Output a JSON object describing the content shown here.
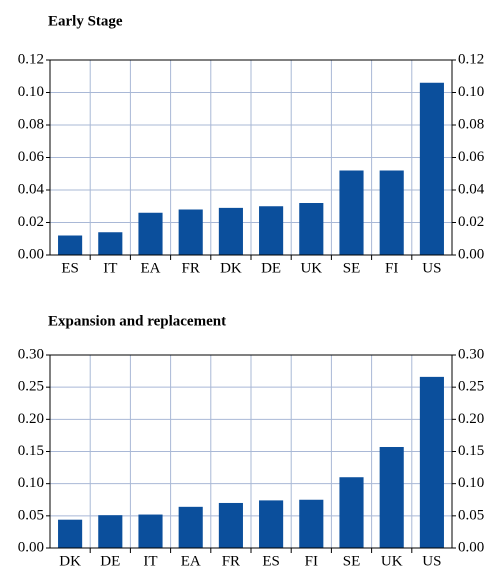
{
  "chart_data": [
    {
      "type": "bar",
      "title": "Early Stage",
      "categories": [
        "ES",
        "IT",
        "EA",
        "FR",
        "DK",
        "DE",
        "UK",
        "SE",
        "FI",
        "US"
      ],
      "values": [
        0.012,
        0.014,
        0.026,
        0.028,
        0.029,
        0.03,
        0.032,
        0.052,
        0.052,
        0.106
      ],
      "color": "#0b4f9c",
      "ylim": [
        0,
        0.12
      ],
      "yticks": [
        {
          "value": 0,
          "label": "0.00"
        },
        0.02,
        0.04,
        0.06,
        0.08,
        {
          "value": 0.1,
          "label": "0.10"
        },
        0.12
      ],
      "grid": true
    },
    {
      "type": "bar",
      "title": "Expansion and replacement",
      "categories": [
        "DK",
        "DE",
        "IT",
        "EA",
        "FR",
        "ES",
        "FI",
        "SE",
        "UK",
        "US"
      ],
      "values": [
        0.044,
        0.051,
        0.052,
        0.064,
        0.07,
        0.074,
        0.075,
        0.11,
        0.157,
        0.266
      ],
      "color": "#0b4f9c",
      "ylim": [
        0,
        0.3
      ],
      "yticks": [
        {
          "value": 0,
          "label": "0.00"
        },
        0.05,
        {
          "value": 0.1,
          "label": "0.10"
        },
        0.15,
        {
          "value": 0.2,
          "label": "0.20"
        },
        0.25,
        {
          "value": 0.3,
          "label": "0.30"
        }
      ],
      "grid": true
    }
  ]
}
